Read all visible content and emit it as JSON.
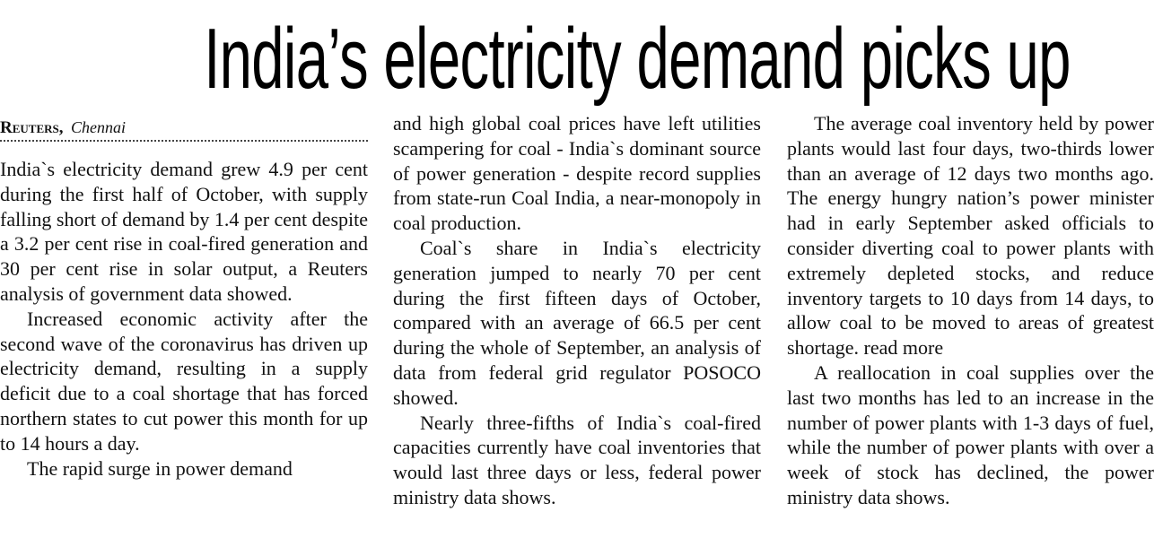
{
  "headline": "India’s electricity demand picks up",
  "byline": {
    "agency": "Reuters,",
    "place": "Chennai"
  },
  "columns": [
    {
      "paragraphs": [
        "India`s electricity demand grew 4.9 per cent during the first half of October, with supply falling short of demand by 1.4 per cent despite a 3.2 per cent rise in coal-fired generation and 30 per cent rise in solar output, a Reuters analysis of government data showed.",
        "Increased economic activity after the second wave of the coronavirus has driven up electricity demand, resulting in a supply deficit due to a coal shortage that has forced northern states to cut power this month for up to 14 hours a day.",
        "The rapid surge in power demand"
      ]
    },
    {
      "paragraphs": [
        "and high global coal prices have left utilities scampering for coal - India`s dominant source of power generation - despite record supplies from state-run Coal India, a near-monopoly in coal production.",
        "Coal`s share in India`s electricity generation jumped to nearly 70 per cent during the first fifteen days of October, compared with an average of 66.5 per cent during the whole of September, an analysis of data from federal grid regulator POSOCO showed.",
        "Nearly three-fifths of India`s coal-fired capacities currently have coal inventories that would last three days or less, federal power ministry data shows."
      ]
    },
    {
      "paragraphs": [
        "The average coal inventory held by power plants would last four days, two-thirds lower than an average of 12 days two months ago. The energy hungry nation’s power minister had in early September asked officials to consider diverting coal to power plants with extremely depleted stocks, and reduce inventory targets to 10 days from 14 days, to allow coal to be moved to areas of greatest shortage. read more",
        "A reallocation in coal supplies over the last two months has led to an increase in the number of power plants with 1-3 days of fuel, while the number of power plants with over a week of stock has declined, the power ministry data shows."
      ]
    }
  ]
}
